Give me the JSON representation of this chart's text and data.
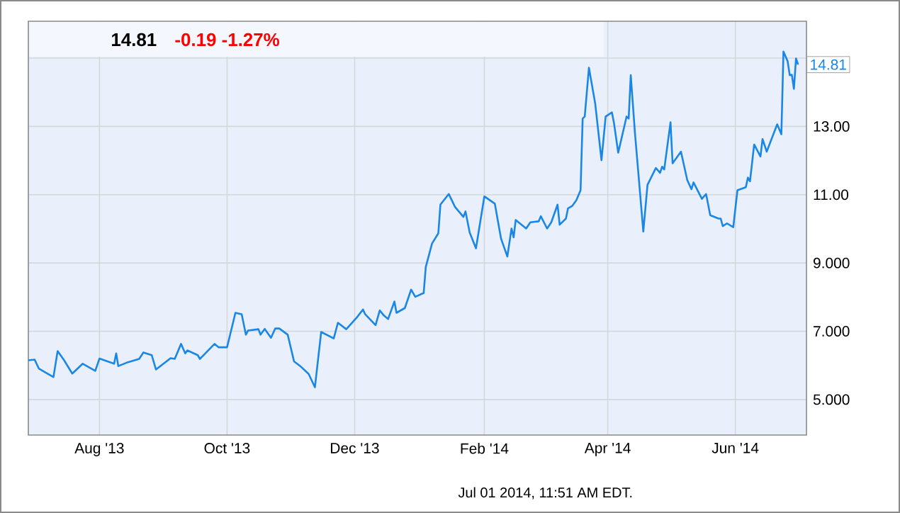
{
  "chart_data": {
    "type": "line",
    "title": "14.81",
    "subtitle": "-0.19  -1.27%",
    "annotations": [
      {
        "text": "14.81",
        "x": "2014-07-01",
        "y": 14.81
      },
      "Jul 01 2014, 11:51 AM EDT."
    ],
    "x": [
      "2013-06-28",
      "2013-07-01",
      "2013-07-03",
      "2013-07-06",
      "2013-07-10",
      "2013-07-12",
      "2013-07-15",
      "2013-07-19",
      "2013-07-24",
      "2013-07-30",
      "2013-08-01",
      "2013-08-08",
      "2013-08-09",
      "2013-08-10",
      "2013-08-14",
      "2013-08-20",
      "2013-08-22",
      "2013-08-26",
      "2013-08-28",
      "2013-09-04",
      "2013-09-06",
      "2013-09-09",
      "2013-09-11",
      "2013-09-12",
      "2013-09-17",
      "2013-09-18",
      "2013-09-25",
      "2013-09-27",
      "2013-10-01",
      "2013-10-05",
      "2013-10-08",
      "2013-10-10",
      "2013-10-11",
      "2013-10-16",
      "2013-10-17",
      "2013-10-19",
      "2013-10-22",
      "2013-10-24",
      "2013-10-26",
      "2013-10-30",
      "2013-11-02",
      "2013-11-05",
      "2013-11-09",
      "2013-11-12",
      "2013-11-15",
      "2013-11-21",
      "2013-11-23",
      "2013-11-27",
      "2013-12-02",
      "2013-12-05",
      "2013-12-06",
      "2013-12-11",
      "2013-12-13",
      "2013-12-15",
      "2013-12-17",
      "2013-12-20",
      "2013-12-21",
      "2013-12-25",
      "2013-12-28",
      "2013-12-30",
      "2014-01-03",
      "2014-01-04",
      "2014-01-07",
      "2014-01-10",
      "2014-01-11",
      "2014-01-15",
      "2014-01-18",
      "2014-01-22",
      "2014-01-23",
      "2014-01-25",
      "2014-01-28",
      "2014-02-01",
      "2014-02-06",
      "2014-02-09",
      "2014-02-12",
      "2014-02-14",
      "2014-02-15",
      "2014-02-16",
      "2014-02-21",
      "2014-02-23",
      "2014-02-27",
      "2014-02-28",
      "2014-03-03",
      "2014-03-05",
      "2014-03-08",
      "2014-03-09",
      "2014-03-12",
      "2014-03-13",
      "2014-03-15",
      "2014-03-17",
      "2014-03-19",
      "2014-03-20",
      "2014-03-21",
      "2014-03-23",
      "2014-03-26",
      "2014-03-29",
      "2014-03-31",
      "2014-04-03",
      "2014-04-04",
      "2014-04-06",
      "2014-04-10",
      "2014-04-11",
      "2014-04-12",
      "2014-04-14",
      "2014-04-18",
      "2014-04-20",
      "2014-04-24",
      "2014-04-26",
      "2014-04-27",
      "2014-04-28",
      "2014-05-01",
      "2014-05-02",
      "2014-05-06",
      "2014-05-09",
      "2014-05-11",
      "2014-05-12",
      "2014-05-16",
      "2014-05-18",
      "2014-05-20",
      "2014-05-24",
      "2014-05-25",
      "2014-05-26",
      "2014-05-28",
      "2014-05-31",
      "2014-06-02",
      "2014-06-06",
      "2014-06-07",
      "2014-06-08",
      "2014-06-10",
      "2014-06-13",
      "2014-06-14",
      "2014-06-16",
      "2014-06-21",
      "2014-06-23",
      "2014-06-24",
      "2014-06-26",
      "2014-06-27",
      "2014-06-28",
      "2014-06-29",
      "2014-06-30",
      "2014-07-01"
    ],
    "series": [
      {
        "color": "#1a87e6",
        "values": [
          6.15,
          6.17,
          5.91,
          5.8,
          5.66,
          6.42,
          6.16,
          5.76,
          6.05,
          5.84,
          6.2,
          6.05,
          6.35,
          5.98,
          6.08,
          6.19,
          6.38,
          6.3,
          5.88,
          6.21,
          6.19,
          6.63,
          6.35,
          6.44,
          6.3,
          6.19,
          6.63,
          6.53,
          6.53,
          7.54,
          7.5,
          6.9,
          7.02,
          7.06,
          6.9,
          7.07,
          6.81,
          7.08,
          7.08,
          6.9,
          6.12,
          5.98,
          5.75,
          5.36,
          6.98,
          6.79,
          7.25,
          7.06,
          7.4,
          7.64,
          7.5,
          7.18,
          7.61,
          7.46,
          7.36,
          7.87,
          7.54,
          7.68,
          8.22,
          8.01,
          8.12,
          8.88,
          9.57,
          9.87,
          10.71,
          11.02,
          10.64,
          10.35,
          10.51,
          9.89,
          9.43,
          10.95,
          10.74,
          9.71,
          9.19,
          10.01,
          9.75,
          10.26,
          10.01,
          10.19,
          10.22,
          10.37,
          10.01,
          10.19,
          10.71,
          10.12,
          10.3,
          10.6,
          10.67,
          10.84,
          11.13,
          13.23,
          13.29,
          14.72,
          13.67,
          12.01,
          13.29,
          13.41,
          13.09,
          12.23,
          13.29,
          13.23,
          14.5,
          12.81,
          9.92,
          11.29,
          11.78,
          11.64,
          11.82,
          11.74,
          13.12,
          11.92,
          12.26,
          11.43,
          11.16,
          11.36,
          10.88,
          11.02,
          10.4,
          10.3,
          10.3,
          10.08,
          10.16,
          10.05,
          11.13,
          11.22,
          11.5,
          11.39,
          12.47,
          12.12,
          12.63,
          12.26,
          13.06,
          12.77,
          15.19,
          14.91,
          14.5,
          14.51,
          14.1,
          14.99,
          14.81
        ]
      }
    ],
    "xlim": [
      "2013-06-28",
      "2014-07-05"
    ],
    "xticks": [
      {
        "value": "2013-08-01",
        "label": "Aug '13"
      },
      {
        "value": "2013-10-01",
        "label": "Oct '13"
      },
      {
        "value": "2013-12-01",
        "label": "Dec '13"
      },
      {
        "value": "2014-02-01",
        "label": "Feb '14"
      },
      {
        "value": "2014-04-01",
        "label": "Apr '14"
      },
      {
        "value": "2014-06-01",
        "label": "Jun '14"
      }
    ],
    "ylim": [
      3.96,
      16.08
    ],
    "yticks": [
      {
        "value": 5,
        "label": "5.000"
      },
      {
        "value": 7,
        "label": "7.000"
      },
      {
        "value": 9,
        "label": "9.000"
      },
      {
        "value": 11,
        "label": "11.00"
      },
      {
        "value": 13,
        "label": "13.00"
      },
      {
        "value": 15,
        "label": null
      }
    ],
    "grid": true,
    "marker": "none"
  }
}
